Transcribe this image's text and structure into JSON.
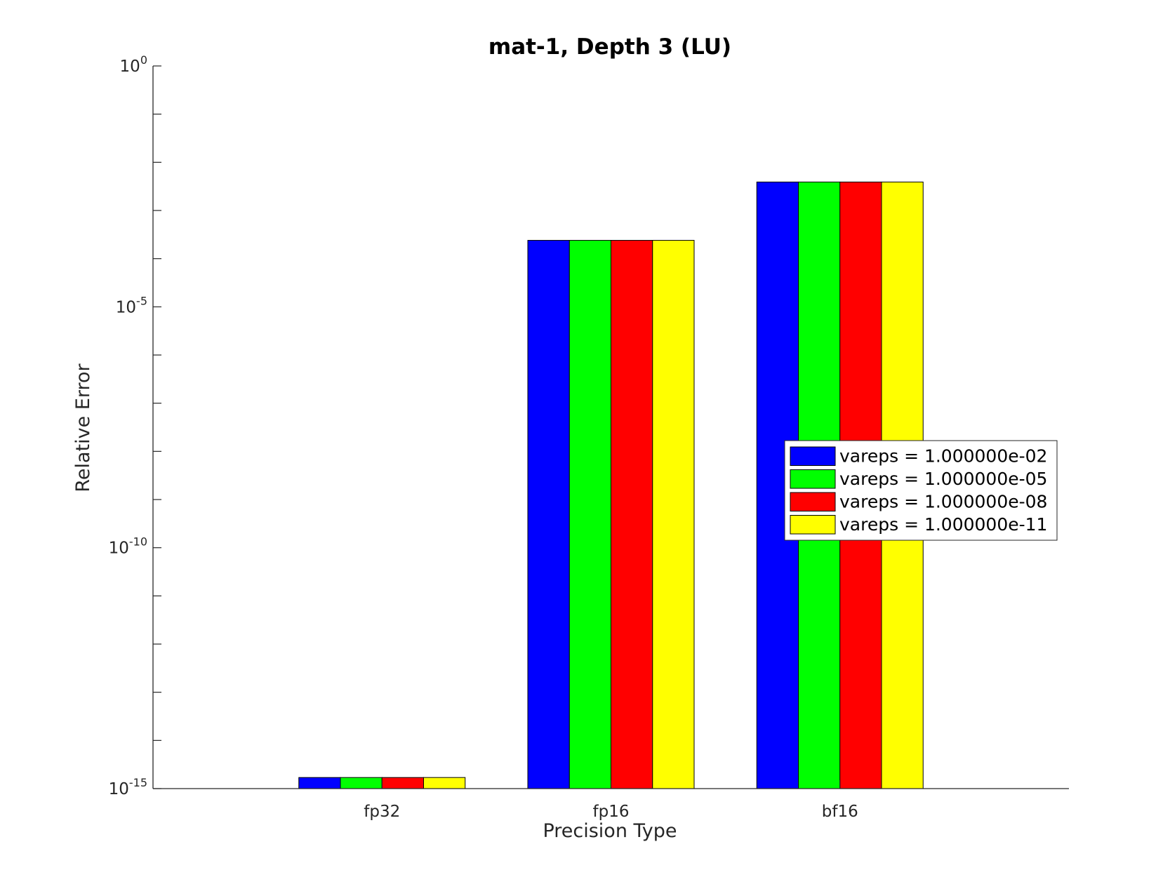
{
  "chart_data": {
    "type": "bar",
    "title": "mat-1, Depth 3 (LU)",
    "xlabel": "Precision Type",
    "ylabel": "Relative Error",
    "yscale": "log",
    "ylim": [
      1e-15,
      1
    ],
    "yticks": [
      {
        "base": "10",
        "exp": "-15",
        "value": 1e-15
      },
      {
        "base": "10",
        "exp": "-10",
        "value": 1e-10
      },
      {
        "base": "10",
        "exp": "-5",
        "value": 1e-05
      },
      {
        "base": "10",
        "exp": "0",
        "value": 1
      }
    ],
    "categories": [
      "fp32",
      "fp16",
      "bf16"
    ],
    "series": [
      {
        "name": "vareps = 1.000000e-02",
        "color": "#0000ff",
        "values": [
          1.7e-15,
          0.00024,
          0.0039
        ]
      },
      {
        "name": "vareps = 1.000000e-05",
        "color": "#00ff00",
        "values": [
          1.7e-15,
          0.00024,
          0.0039
        ]
      },
      {
        "name": "vareps = 1.000000e-08",
        "color": "#ff0000",
        "values": [
          1.7e-15,
          0.00024,
          0.0039
        ]
      },
      {
        "name": "vareps = 1.000000e-11",
        "color": "#ffff00",
        "values": [
          1.7e-15,
          0.00024,
          0.0039
        ]
      }
    ],
    "legend_position": "center-right",
    "grid": false
  }
}
